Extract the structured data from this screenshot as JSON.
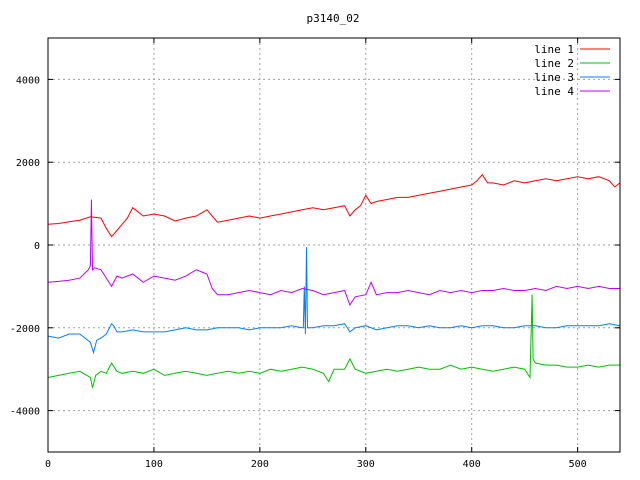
{
  "chart_data": {
    "type": "line",
    "title": "p3140_02",
    "xlabel": "",
    "ylabel": "",
    "xlim": [
      0,
      540
    ],
    "ylim": [
      -5000,
      5000
    ],
    "x_ticks": [
      0,
      100,
      200,
      300,
      400,
      500
    ],
    "y_ticks": [
      -4000,
      -2000,
      0,
      2000,
      4000
    ],
    "grid": true,
    "legend_position": "top-right",
    "series": [
      {
        "name": "line 1",
        "color": "#ff0000",
        "x": [
          0,
          10,
          20,
          30,
          40,
          50,
          55,
          60,
          65,
          70,
          75,
          80,
          90,
          100,
          110,
          120,
          130,
          140,
          150,
          160,
          170,
          180,
          190,
          200,
          210,
          220,
          230,
          240,
          250,
          260,
          270,
          280,
          285,
          290,
          295,
          300,
          305,
          310,
          320,
          330,
          340,
          350,
          360,
          370,
          380,
          390,
          400,
          405,
          410,
          415,
          420,
          430,
          440,
          450,
          460,
          470,
          480,
          490,
          500,
          510,
          520,
          530,
          535,
          540
        ],
        "y": [
          500,
          520,
          560,
          600,
          680,
          650,
          400,
          200,
          350,
          500,
          650,
          900,
          700,
          750,
          700,
          580,
          650,
          700,
          850,
          550,
          600,
          650,
          700,
          650,
          700,
          750,
          800,
          850,
          900,
          850,
          900,
          950,
          700,
          850,
          950,
          1200,
          1000,
          1050,
          1100,
          1150,
          1150,
          1200,
          1250,
          1300,
          1350,
          1400,
          1450,
          1550,
          1700,
          1500,
          1500,
          1450,
          1550,
          1500,
          1550,
          1600,
          1550,
          1600,
          1650,
          1600,
          1650,
          1550,
          1400,
          1500
        ]
      },
      {
        "name": "line 2",
        "color": "#00c000",
        "x": [
          0,
          10,
          20,
          30,
          40,
          42,
          45,
          50,
          55,
          60,
          65,
          70,
          80,
          90,
          100,
          110,
          120,
          130,
          140,
          150,
          160,
          170,
          180,
          190,
          200,
          210,
          220,
          230,
          240,
          250,
          260,
          265,
          270,
          280,
          285,
          290,
          300,
          310,
          320,
          330,
          340,
          350,
          360,
          370,
          380,
          390,
          400,
          410,
          420,
          430,
          440,
          450,
          455,
          457,
          458,
          460,
          470,
          480,
          490,
          500,
          510,
          520,
          530,
          540
        ],
        "y": [
          -3200,
          -3150,
          -3100,
          -3050,
          -3200,
          -3450,
          -3150,
          -3050,
          -3100,
          -2850,
          -3050,
          -3100,
          -3050,
          -3100,
          -3000,
          -3150,
          -3100,
          -3050,
          -3100,
          -3150,
          -3100,
          -3050,
          -3100,
          -3050,
          -3100,
          -3000,
          -3050,
          -3000,
          -2950,
          -3000,
          -3100,
          -3300,
          -3000,
          -3000,
          -2750,
          -3000,
          -3100,
          -3050,
          -3000,
          -3050,
          -3000,
          -2950,
          -3000,
          -3000,
          -2900,
          -3000,
          -2950,
          -3000,
          -3050,
          -3000,
          -2950,
          -3000,
          -3200,
          -1200,
          -2750,
          -2850,
          -2900,
          -2900,
          -2950,
          -2950,
          -2900,
          -2950,
          -2900,
          -2900
        ]
      },
      {
        "name": "line 3",
        "color": "#0080ff",
        "x": [
          0,
          10,
          20,
          30,
          40,
          43,
          46,
          50,
          55,
          60,
          62,
          65,
          70,
          80,
          90,
          100,
          110,
          120,
          130,
          140,
          150,
          160,
          170,
          180,
          190,
          200,
          210,
          220,
          230,
          240,
          241,
          242,
          243,
          244,
          245,
          250,
          260,
          270,
          280,
          285,
          290,
          300,
          310,
          320,
          330,
          340,
          350,
          360,
          370,
          380,
          390,
          400,
          410,
          420,
          430,
          440,
          450,
          460,
          470,
          480,
          490,
          500,
          510,
          520,
          530,
          540
        ],
        "y": [
          -2200,
          -2250,
          -2150,
          -2150,
          -2350,
          -2600,
          -2300,
          -2250,
          -2150,
          -1900,
          -1950,
          -2100,
          -2100,
          -2050,
          -2100,
          -2100,
          -2100,
          -2050,
          -2000,
          -2050,
          -2050,
          -2000,
          -2000,
          -2000,
          -2050,
          -2000,
          -2000,
          -2000,
          -1950,
          -2000,
          -2000,
          -1000,
          -2150,
          -50,
          -2000,
          -2000,
          -1950,
          -1950,
          -1900,
          -2100,
          -2000,
          -1950,
          -2050,
          -2000,
          -1950,
          -1950,
          -2000,
          -1950,
          -2000,
          -2000,
          -1950,
          -2000,
          -1950,
          -1950,
          -2000,
          -2000,
          -1950,
          -1950,
          -2000,
          -2000,
          -1950,
          -1950,
          -1950,
          -1950,
          -1900,
          -1950
        ]
      },
      {
        "name": "line 4",
        "color": "#c000ff",
        "x": [
          0,
          10,
          20,
          30,
          38,
          40,
          41,
          42,
          44,
          50,
          55,
          60,
          65,
          70,
          80,
          90,
          100,
          110,
          120,
          130,
          140,
          145,
          150,
          155,
          160,
          170,
          180,
          190,
          200,
          210,
          220,
          230,
          240,
          250,
          260,
          270,
          280,
          285,
          290,
          300,
          305,
          310,
          320,
          330,
          340,
          350,
          360,
          370,
          380,
          390,
          400,
          410,
          420,
          430,
          440,
          450,
          460,
          470,
          480,
          490,
          500,
          510,
          520,
          530,
          540
        ],
        "y": [
          -900,
          -880,
          -850,
          -800,
          -600,
          -500,
          1100,
          -600,
          -550,
          -600,
          -800,
          -1000,
          -750,
          -800,
          -700,
          -900,
          -750,
          -800,
          -850,
          -750,
          -600,
          -650,
          -700,
          -1050,
          -1200,
          -1200,
          -1150,
          -1100,
          -1150,
          -1200,
          -1100,
          -1150,
          -1050,
          -1100,
          -1200,
          -1150,
          -1100,
          -1450,
          -1250,
          -1200,
          -900,
          -1200,
          -1150,
          -1150,
          -1100,
          -1150,
          -1200,
          -1100,
          -1150,
          -1100,
          -1150,
          -1100,
          -1100,
          -1050,
          -1100,
          -1100,
          -1050,
          -1100,
          -1000,
          -1050,
          -1000,
          -1050,
          -1000,
          -1050,
          -1050
        ]
      }
    ]
  }
}
